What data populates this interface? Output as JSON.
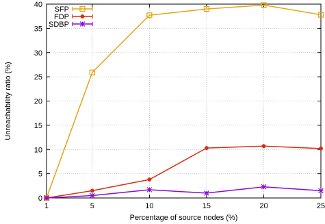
{
  "chart_data": {
    "type": "line",
    "title": "",
    "xlabel": "Percentage of source nodes (%)",
    "ylabel": "Unreachability ratio (%)",
    "x": [
      1,
      5,
      10,
      15,
      20,
      25
    ],
    "xlim": [
      1,
      25
    ],
    "ylim": [
      0,
      40
    ],
    "xticks": [
      1,
      5,
      10,
      15,
      20,
      25
    ],
    "yticks": [
      0,
      5,
      10,
      15,
      20,
      25,
      30,
      35,
      40
    ],
    "grid": true,
    "legend_position": "top-left",
    "series": [
      {
        "name": "SFP",
        "values": [
          0,
          25.9,
          37.7,
          39.0,
          39.8,
          37.8
        ],
        "color": "#e6a313",
        "marker": "open-square"
      },
      {
        "name": "FDP",
        "values": [
          0,
          1.5,
          3.8,
          10.3,
          10.7,
          10.2
        ],
        "color": "#d62f10",
        "marker": "filled-circle"
      },
      {
        "name": "SDBP",
        "values": [
          0,
          0.5,
          1.7,
          1.0,
          2.3,
          1.5
        ],
        "color": "#8a0ad6",
        "marker": "asterisk"
      }
    ]
  }
}
